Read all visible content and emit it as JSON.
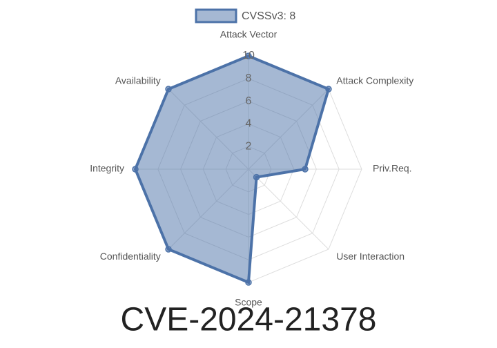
{
  "chart_data": {
    "type": "radar",
    "title": "CVE-2024-21378",
    "categories": [
      "Attack Vector",
      "Attack Complexity",
      "Priv.Req.",
      "User Interaction",
      "Scope",
      "Confidentiality",
      "Integrity",
      "Availability"
    ],
    "series": [
      {
        "name": "CVSSv3: 8",
        "color": "#4c72a8",
        "values": [
          10,
          10,
          5,
          1,
          10,
          10,
          10,
          10
        ]
      }
    ],
    "ylim": [
      0,
      10
    ],
    "yticks": [
      2,
      4,
      6,
      8,
      10
    ],
    "grid": true
  }
}
